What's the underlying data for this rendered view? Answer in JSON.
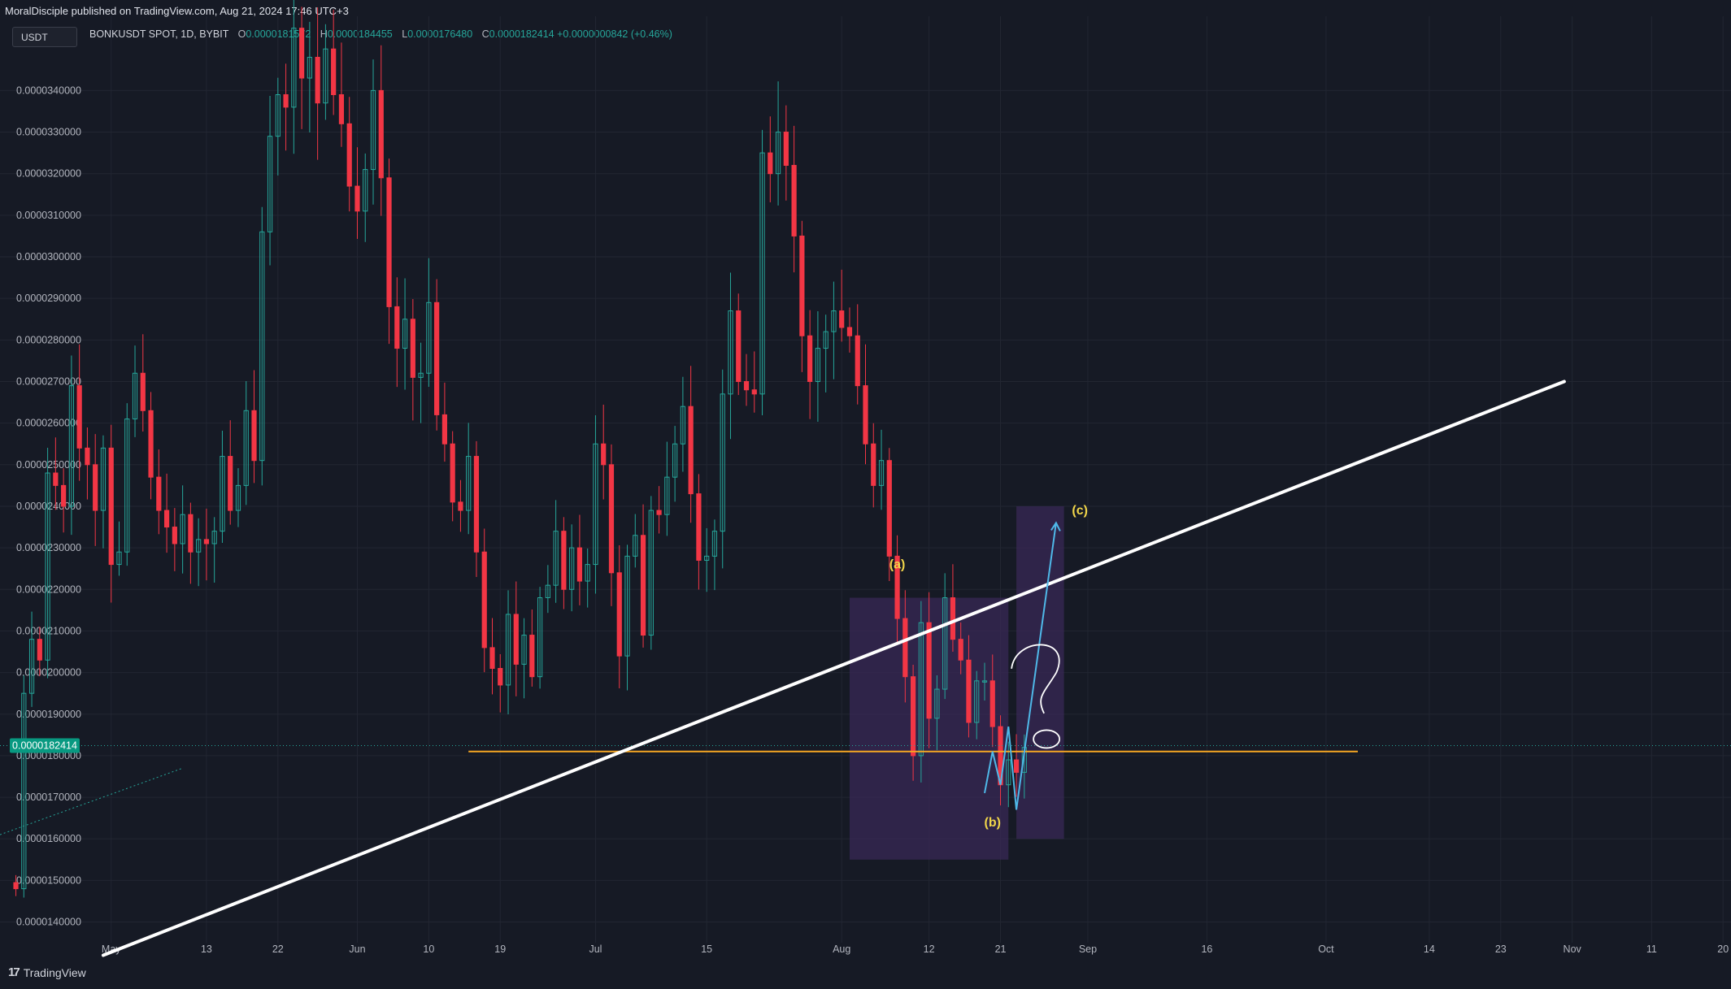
{
  "header": {
    "published": "MoralDisciple published on TradingView.com, Aug 21, 2024 17:46 UTC+3",
    "currency_pill": "USDT",
    "symbol_info": "BONKUSDT SPOT, 1D, BYBIT",
    "open_label": "O",
    "open": "0.0000181572",
    "high_label": "H",
    "high": "0.0000184455",
    "low_label": "L",
    "low": "0.0000176480",
    "close_label": "C",
    "close": "0.0000182414",
    "change": "+0.0000000842 (+0.46%)"
  },
  "footer": {
    "logo": "17",
    "brand": "TradingView"
  },
  "colors": {
    "background": "#161a25",
    "up": "#26a69a",
    "down": "#f23645",
    "trendline": "#ffffff",
    "support": "#f5a623",
    "projection": "#4fb8e8",
    "box": "#3d2a5c",
    "wave_label": "#f0d54a",
    "price_tag": "#089981"
  },
  "chart_data": {
    "type": "candlestick",
    "y_scale": "linear",
    "ylim": [
      1.36e-05,
      3.52e-05
    ],
    "y_ticks": [
      "0.0000140000",
      "0.0000150000",
      "0.0000160000",
      "0.0000170000",
      "0.0000180000",
      "0.0000190000",
      "0.0000200000",
      "0.0000210000",
      "0.0000220000",
      "0.0000230000",
      "0.0000240000",
      "0.0000250000",
      "0.0000260000",
      "0.0000270000",
      "0.0000280000",
      "0.0000290000",
      "0.0000300000",
      "0.0000310000",
      "0.0000320000",
      "0.0000330000",
      "0.0000340000"
    ],
    "x_range": [
      "2024-04-17",
      "2024-11-21"
    ],
    "x_ticks": [
      {
        "date": "2024-05-01",
        "label": "May"
      },
      {
        "date": "2024-05-13",
        "label": "13"
      },
      {
        "date": "2024-05-22",
        "label": "22"
      },
      {
        "date": "2024-06-01",
        "label": "Jun"
      },
      {
        "date": "2024-06-10",
        "label": "10"
      },
      {
        "date": "2024-06-19",
        "label": "19"
      },
      {
        "date": "2024-07-01",
        "label": "Jul"
      },
      {
        "date": "2024-07-15",
        "label": "15"
      },
      {
        "date": "2024-08-01",
        "label": "Aug"
      },
      {
        "date": "2024-08-12",
        "label": "12"
      },
      {
        "date": "2024-08-21",
        "label": "21"
      },
      {
        "date": "2024-09-01",
        "label": "Sep"
      },
      {
        "date": "2024-09-16",
        "label": "16"
      },
      {
        "date": "2024-10-01",
        "label": "Oct"
      },
      {
        "date": "2024-10-14",
        "label": "14"
      },
      {
        "date": "2024-10-23",
        "label": "23"
      },
      {
        "date": "2024-11-01",
        "label": "Nov"
      },
      {
        "date": "2024-11-11",
        "label": "11"
      },
      {
        "date": "2024-11-20",
        "label": "20"
      }
    ],
    "grid": true,
    "last_price_tag": "0.0000182414",
    "last_price": 1.82414e-05,
    "candles_close": [
      1.48e-05,
      1.95e-05,
      2.08e-05,
      2.03e-05,
      2.48e-05,
      2.45e-05,
      2.4e-05,
      2.69e-05,
      2.54e-05,
      2.5e-05,
      2.39e-05,
      2.54e-05,
      2.26e-05,
      2.29e-05,
      2.61e-05,
      2.72e-05,
      2.63e-05,
      2.47e-05,
      2.39e-05,
      2.35e-05,
      2.31e-05,
      2.38e-05,
      2.29e-05,
      2.32e-05,
      2.31e-05,
      2.34e-05,
      2.52e-05,
      2.39e-05,
      2.45e-05,
      2.63e-05,
      2.51e-05,
      3.06e-05,
      3.29e-05,
      3.39e-05,
      3.36e-05,
      3.55e-05,
      3.43e-05,
      3.48e-05,
      3.37e-05,
      3.5e-05,
      3.39e-05,
      3.32e-05,
      3.17e-05,
      3.11e-05,
      3.21e-05,
      3.4e-05,
      3.19e-05,
      2.88e-05,
      2.78e-05,
      2.85e-05,
      2.71e-05,
      2.72e-05,
      2.89e-05,
      2.62e-05,
      2.55e-05,
      2.41e-05,
      2.39e-05,
      2.52e-05,
      2.29e-05,
      2.06e-05,
      2.01e-05,
      1.97e-05,
      2.14e-05,
      2.02e-05,
      2.09e-05,
      1.99e-05,
      2.18e-05,
      2.21e-05,
      2.34e-05,
      2.2e-05,
      2.3e-05,
      2.22e-05,
      2.26e-05,
      2.55e-05,
      2.5e-05,
      2.24e-05,
      2.04e-05,
      2.28e-05,
      2.33e-05,
      2.09e-05,
      2.39e-05,
      2.38e-05,
      2.47e-05,
      2.55e-05,
      2.64e-05,
      2.43e-05,
      2.27e-05,
      2.28e-05,
      2.34e-05,
      2.67e-05,
      2.87e-05,
      2.7e-05,
      2.68e-05,
      2.67e-05,
      3.25e-05,
      3.2e-05,
      3.3e-05,
      3.22e-05,
      3.05e-05,
      2.81e-05,
      2.7e-05,
      2.78e-05,
      2.82e-05,
      2.87e-05,
      2.83e-05,
      2.81e-05,
      2.69e-05,
      2.55e-05,
      2.45e-05,
      2.51e-05,
      2.28e-05,
      2.13e-05,
      1.99e-05,
      1.8e-05,
      2.12e-05,
      1.89e-05,
      1.96e-05,
      2.18e-05,
      2.08e-05,
      2.03e-05,
      1.88e-05,
      1.98e-05,
      1.98e-05,
      1.87e-05,
      1.73e-05,
      1.79e-05,
      1.76e-05,
      1.82e-05
    ],
    "annotations": {
      "trendline_points": [
        {
          "date": "2024-04-30",
          "price": 1.32e-05
        },
        {
          "date": "2024-10-31",
          "price": 2.7e-05
        }
      ],
      "support_line": {
        "price": 1.81e-05,
        "from": "2024-06-15",
        "to": "2024-10-05"
      },
      "dotted_line": {
        "from": {
          "date": "2024-04-17",
          "price": 1.61e-05
        },
        "to": {
          "date": "2024-05-10",
          "price": 1.77e-05
        }
      },
      "box_a": {
        "from": "2024-08-02",
        "to": "2024-08-22",
        "top": 2.18e-05,
        "bottom": 1.55e-05
      },
      "box_c": {
        "from": "2024-08-23",
        "to": "2024-08-29",
        "top": 2.4e-05,
        "bottom": 1.6e-05
      },
      "wave_labels": [
        {
          "text": "(a)",
          "date": "2024-08-08",
          "price": 2.25e-05
        },
        {
          "text": "(b)",
          "date": "2024-08-20",
          "price": 1.63e-05
        },
        {
          "text": "(c)",
          "date": "2024-08-31",
          "price": 2.38e-05
        }
      ],
      "projection_path": [
        {
          "date": "2024-08-19",
          "price": 1.71e-05
        },
        {
          "date": "2024-08-20",
          "price": 1.81e-05
        },
        {
          "date": "2024-08-21",
          "price": 1.73e-05
        },
        {
          "date": "2024-08-22",
          "price": 1.87e-05
        },
        {
          "date": "2024-08-23",
          "price": 1.67e-05
        },
        {
          "date": "2024-08-28",
          "price": 2.36e-05
        }
      ],
      "question_mark": {
        "date": "2024-08-27",
        "price": 1.98e-05
      },
      "question_dot": {
        "date": "2024-08-27",
        "price": 1.84e-05
      }
    }
  }
}
